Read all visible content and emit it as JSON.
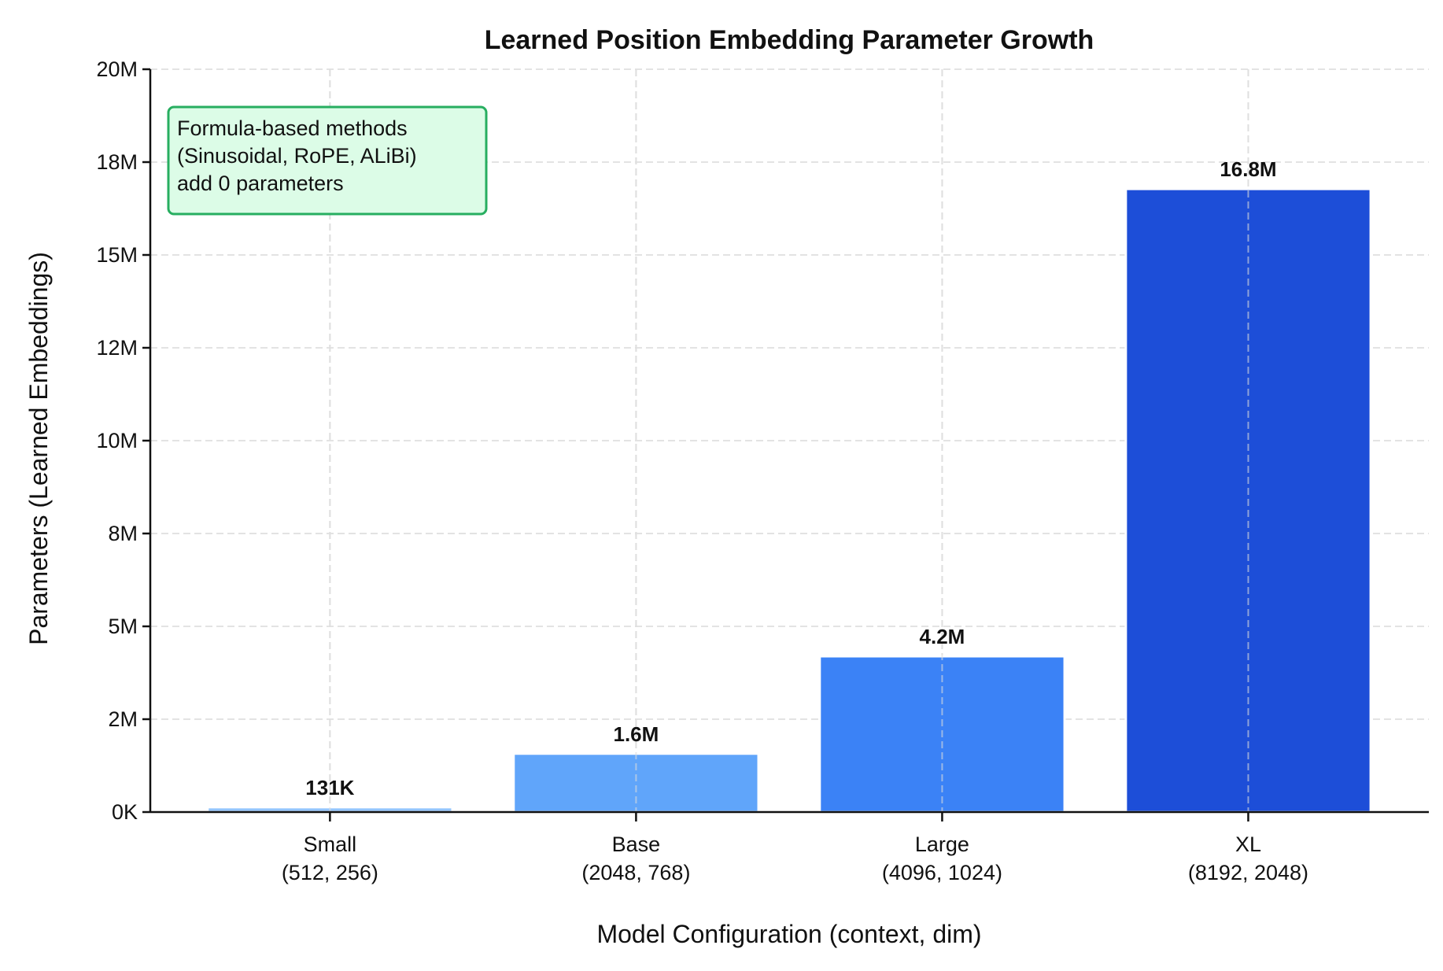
{
  "chart_data": {
    "type": "bar",
    "title": "Learned Position Embedding Parameter Growth",
    "xlabel": "Model Configuration (context, dim)",
    "ylabel": "Parameters (Learned Embeddings)",
    "categories": [
      {
        "name": "Small",
        "config": "(512, 256)"
      },
      {
        "name": "Base",
        "config": "(2048, 768)"
      },
      {
        "name": "Large",
        "config": "(4096, 1024)"
      },
      {
        "name": "XL",
        "config": "(8192, 2048)"
      }
    ],
    "values": [
      131072,
      1572864,
      4194304,
      16777216
    ],
    "data_labels": [
      "131K",
      "1.6M",
      "4.2M",
      "16.8M"
    ],
    "colors": [
      "#93c5fd",
      "#60a5fa",
      "#3b82f6",
      "#1d4ed8"
    ],
    "ylim": [
      0,
      20000000
    ],
    "yticks": [
      0,
      2500000,
      5000000,
      7500000,
      10000000,
      12500000,
      15000000,
      17500000,
      20000000
    ],
    "ytick_labels": [
      "0K",
      "2M",
      "5M",
      "8M",
      "10M",
      "12M",
      "15M",
      "18M",
      "20M"
    ],
    "grid": true,
    "annotation": {
      "lines": [
        "Formula-based methods",
        "(Sinusoidal, RoPE, ALiBi)",
        "add 0 parameters"
      ],
      "fill": "#dcfce7",
      "border": "#27ae60"
    }
  }
}
